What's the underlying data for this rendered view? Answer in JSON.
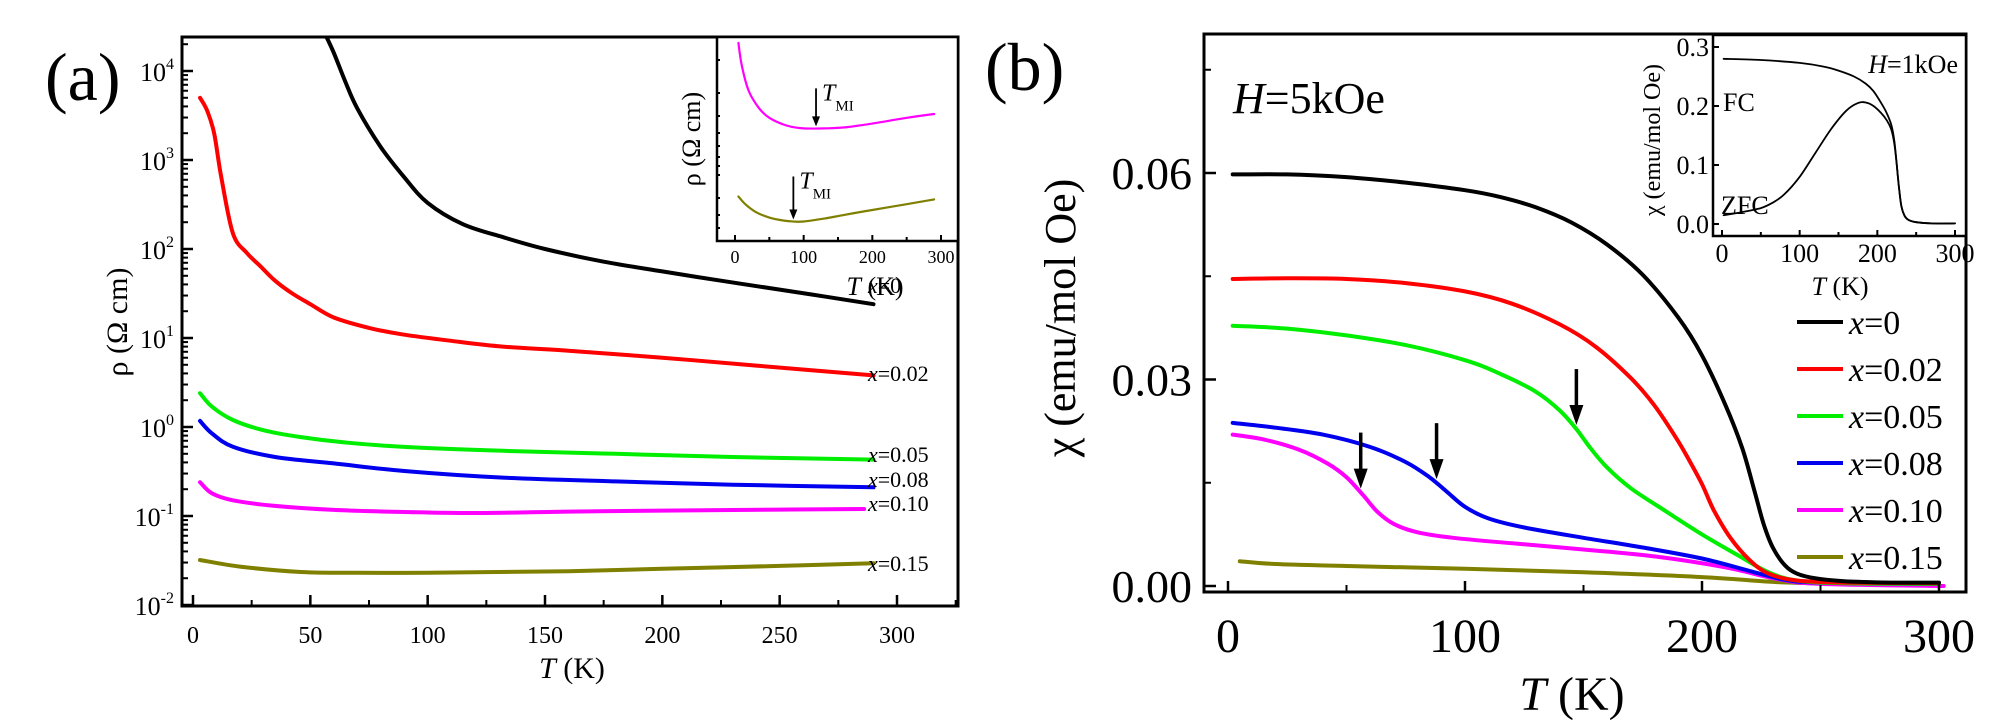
{
  "panel_labels": {
    "a": "(a)",
    "b": "(b)"
  },
  "chart_data": [
    {
      "id": "a-main",
      "type": "line",
      "title": "",
      "xlabel": "T (K)",
      "xlabel_italic_part": "T",
      "xlabel_rest": " (K)",
      "ylabel": "ρ (Ω cm)",
      "yscale": "log",
      "xlim": [
        -5,
        330
      ],
      "ylim": [
        0.0098,
        27000
      ],
      "xticks": [
        0,
        50,
        100,
        150,
        200,
        250,
        300
      ],
      "xtick_labels": [
        "0",
        "50",
        "100",
        "150",
        "200",
        "250",
        "300"
      ],
      "yticks_exp": [
        -2,
        -1,
        0,
        1,
        2,
        3,
        4
      ],
      "ytick_labels": [
        {
          "base": "10",
          "exp": "-2"
        },
        {
          "base": "10",
          "exp": "-1"
        },
        {
          "base": "10",
          "exp": "0"
        },
        {
          "base": "10",
          "exp": "1"
        },
        {
          "base": "10",
          "exp": "2"
        },
        {
          "base": "10",
          "exp": "3"
        },
        {
          "base": "10",
          "exp": "4"
        }
      ],
      "series": [
        {
          "name": "x=0",
          "label_var": "x",
          "label_val": "=0",
          "color": "#000000",
          "x": [
            56,
            60,
            65,
            70,
            80,
            90,
            100,
            115,
            132,
            150,
            175,
            200,
            225,
            250,
            270,
            290
          ],
          "y": [
            27000,
            16000,
            7500,
            3800,
            1400,
            640,
            330,
            190,
            136,
            100,
            72,
            56,
            44,
            35,
            29,
            24
          ]
        },
        {
          "name": "x=0.02",
          "label_var": "x",
          "label_val": "=0.02",
          "color": "#ff0000",
          "x": [
            3,
            6,
            9,
            12,
            17,
            23,
            29,
            35,
            42,
            50,
            60,
            75,
            89,
            110,
            132,
            160,
            200,
            240,
            290
          ],
          "y": [
            5000,
            3600,
            2000,
            650,
            150,
            90,
            63,
            44,
            32,
            24,
            17,
            13,
            11,
            9.3,
            8.0,
            7.2,
            6.0,
            4.9,
            3.8
          ]
        },
        {
          "name": "x=0.05",
          "label_var": "x",
          "label_val": "=0.05",
          "color": "#00ee00",
          "x": [
            3,
            8,
            17,
            30,
            46,
            65,
            89,
            132,
            180,
            230,
            290
          ],
          "y": [
            2.4,
            1.7,
            1.2,
            0.92,
            0.77,
            0.67,
            0.6,
            0.54,
            0.5,
            0.46,
            0.43
          ]
        },
        {
          "name": "x=0.08",
          "label_var": "x",
          "label_val": "=0.08",
          "color": "#0000ee",
          "x": [
            3,
            8,
            17,
            35,
            60,
            90,
            132,
            180,
            230,
            290
          ],
          "y": [
            1.17,
            0.85,
            0.6,
            0.46,
            0.39,
            0.32,
            0.27,
            0.245,
            0.225,
            0.21
          ]
        },
        {
          "name": "x=0.10",
          "label_var": "x",
          "label_val": "=0.10",
          "color": "#ff00ff",
          "x": [
            3,
            8,
            17,
            35,
            60,
            90,
            120,
            160,
            200,
            250,
            286
          ],
          "y": [
            0.24,
            0.18,
            0.15,
            0.13,
            0.117,
            0.111,
            0.108,
            0.112,
            0.115,
            0.118,
            0.12
          ]
        },
        {
          "name": "x=0.15",
          "label_var": "x",
          "label_val": "=0.15",
          "color": "#808000",
          "x": [
            3,
            20,
            46,
            70,
            100,
            130,
            160,
            200,
            250,
            290
          ],
          "y": [
            0.032,
            0.027,
            0.0235,
            0.023,
            0.023,
            0.0235,
            0.024,
            0.0255,
            0.0275,
            0.0295
          ]
        }
      ]
    },
    {
      "id": "a-inset",
      "type": "line",
      "xlabel": "T (K)",
      "xlabel_italic_part": "T",
      "xlabel_rest": " (K)",
      "ylabel": "ρ (Ω cm)",
      "yscale": "arbitrary",
      "xlim": [
        -15,
        315
      ],
      "ylim": [
        0,
        1
      ],
      "xticks": [
        0,
        100,
        200,
        300
      ],
      "xtick_labels": [
        "0",
        "100",
        "200",
        "300"
      ],
      "series": [
        {
          "name": "x=0.10",
          "color": "#ff00ff",
          "x": [
            5,
            10,
            20,
            35,
            50,
            75,
            100,
            130,
            160,
            200,
            250,
            290
          ],
          "y": [
            0.99,
            0.87,
            0.74,
            0.65,
            0.6,
            0.56,
            0.545,
            0.545,
            0.55,
            0.57,
            0.6,
            0.62
          ]
        },
        {
          "name": "x=0.15",
          "color": "#808000",
          "x": [
            5,
            15,
            30,
            50,
            70,
            85,
            100,
            130,
            160,
            200,
            250,
            290
          ],
          "y": [
            0.19,
            0.15,
            0.11,
            0.08,
            0.065,
            0.06,
            0.06,
            0.075,
            0.095,
            0.12,
            0.15,
            0.175
          ]
        }
      ],
      "annotations": [
        {
          "text_var": "T",
          "text_sub": "MI",
          "series": "x=0.10",
          "x": 118
        },
        {
          "text_var": "T",
          "text_sub": "MI",
          "series": "x=0.15",
          "x": 85
        }
      ]
    },
    {
      "id": "b-main",
      "type": "line",
      "xlabel": "T (K)",
      "xlabel_italic_part": "T",
      "xlabel_rest": " (K)",
      "ylabel": "χ (emu/mol Oe)",
      "xlim": [
        -10,
        312
      ],
      "ylim": [
        -0.0009,
        0.0802
      ],
      "xticks": [
        0,
        50,
        100,
        150,
        200,
        250,
        300
      ],
      "xtick_labels": [
        "0",
        "",
        "100",
        "",
        "200",
        "",
        "300"
      ],
      "yticks": [
        0,
        0.015,
        0.03,
        0.045,
        0.06,
        0.075
      ],
      "ytick_labels": [
        "0.00",
        "",
        "0.03",
        "",
        "0.06",
        ""
      ],
      "annotation_field": {
        "var": "H",
        "text": "=5kOe"
      },
      "series": [
        {
          "name": "x=0",
          "label_var": "x",
          "label_val": "=0",
          "color": "#000000",
          "x": [
            2,
            25,
            50,
            75,
            100,
            115,
            130,
            145,
            160,
            175,
            190,
            200,
            210,
            217,
            222,
            226,
            230,
            235,
            240,
            248,
            260,
            280,
            300
          ],
          "y": [
            0.0598,
            0.0598,
            0.0594,
            0.0586,
            0.0575,
            0.0565,
            0.055,
            0.0528,
            0.0496,
            0.0452,
            0.039,
            0.0335,
            0.0262,
            0.02,
            0.014,
            0.009,
            0.0055,
            0.003,
            0.0018,
            0.0011,
            0.0007,
            0.0005,
            0.0005
          ]
        },
        {
          "name": "x=0.02",
          "label_var": "x",
          "label_val": "=0.02",
          "color": "#ff0000",
          "x": [
            2,
            25,
            50,
            75,
            100,
            120,
            140,
            155,
            170,
            180,
            190,
            195,
            200,
            205,
            212,
            220,
            228,
            240,
            260,
            300
          ],
          "y": [
            0.0446,
            0.0447,
            0.0446,
            0.044,
            0.0428,
            0.041,
            0.038,
            0.0348,
            0.0302,
            0.0262,
            0.021,
            0.018,
            0.0148,
            0.011,
            0.007,
            0.0038,
            0.0018,
            0.0008,
            0.0005,
            0.0004
          ]
        },
        {
          "name": "x=0.05",
          "label_var": "x",
          "label_val": "=0.05",
          "color": "#00ee00",
          "x": [
            2,
            25,
            50,
            75,
            100,
            115,
            130,
            140,
            147,
            153,
            160,
            170,
            185,
            200,
            215,
            228,
            240,
            260,
            300
          ],
          "y": [
            0.0378,
            0.0374,
            0.0364,
            0.035,
            0.0328,
            0.0308,
            0.0282,
            0.0255,
            0.0228,
            0.02,
            0.0172,
            0.0142,
            0.0108,
            0.0075,
            0.0045,
            0.002,
            0.0008,
            0.0004,
            0.0003
          ]
        },
        {
          "name": "x=0.08",
          "label_var": "x",
          "label_val": "=0.08",
          "color": "#0000ee",
          "x": [
            2,
            20,
            40,
            60,
            75,
            85,
            92,
            100,
            110,
            125,
            150,
            175,
            200,
            220,
            235,
            250,
            300
          ],
          "y": [
            0.0237,
            0.023,
            0.022,
            0.0202,
            0.018,
            0.0158,
            0.0138,
            0.0115,
            0.0098,
            0.0085,
            0.007,
            0.0056,
            0.004,
            0.0022,
            0.0009,
            0.0005,
            0.0003
          ]
        },
        {
          "name": "x=0.10",
          "label_var": "x",
          "label_val": "=0.10",
          "color": "#ff00ff",
          "x": [
            2,
            15,
            30,
            42,
            50,
            57,
            63,
            70,
            80,
            95,
            120,
            150,
            180,
            210,
            232,
            250,
            302
          ],
          "y": [
            0.022,
            0.0213,
            0.0198,
            0.0178,
            0.0158,
            0.0132,
            0.0108,
            0.009,
            0.0078,
            0.007,
            0.0062,
            0.0053,
            0.0043,
            0.0027,
            0.001,
            0.0003,
            0.0
          ]
        },
        {
          "name": "x=0.15",
          "label_var": "x",
          "label_val": "=0.15",
          "color": "#808000",
          "x": [
            5,
            20,
            50,
            100,
            150,
            200,
            230,
            250,
            300
          ],
          "y": [
            0.0036,
            0.0032,
            0.0029,
            0.0025,
            0.002,
            0.0013,
            0.0006,
            0.0004,
            0.0004
          ]
        }
      ],
      "arrows": [
        {
          "series": "x=0.10",
          "x": 56
        },
        {
          "series": "x=0.08",
          "x": 88
        },
        {
          "series": "x=0.05",
          "x": 147
        }
      ],
      "legend": {
        "placement": "right"
      }
    },
    {
      "id": "b-inset",
      "type": "line",
      "xlabel": "T (K)",
      "xlabel_italic_part": "T",
      "xlabel_rest": " (K)",
      "ylabel": "χ (emu/mol Oe)",
      "xlim": [
        -12,
        318
      ],
      "ylim": [
        -0.02,
        0.31
      ],
      "xticks": [
        0,
        50,
        100,
        150,
        200,
        250,
        300
      ],
      "xtick_labels": [
        "0",
        "",
        "100",
        "",
        "200",
        "",
        "300"
      ],
      "yticks": [
        0.0,
        0.1,
        0.2,
        0.3
      ],
      "ytick_labels": [
        "0.0",
        "0.1",
        "0.2",
        "0.3"
      ],
      "annotation_field": {
        "var": "H",
        "text": "=1kOe"
      },
      "series": [
        {
          "name": "FC",
          "color": "#000000",
          "x": [
            2,
            50,
            100,
            130,
            150,
            170,
            185,
            195,
            205,
            212,
            218,
            222,
            225,
            228,
            231,
            235,
            240,
            250,
            270,
            300
          ],
          "y": [
            0.28,
            0.278,
            0.273,
            0.267,
            0.26,
            0.25,
            0.238,
            0.225,
            0.205,
            0.188,
            0.168,
            0.14,
            0.1,
            0.06,
            0.03,
            0.014,
            0.007,
            0.003,
            0.001,
            0.001
          ]
        },
        {
          "name": "ZFC",
          "color": "#000000",
          "x": [
            2,
            25,
            50,
            65,
            80,
            100,
            120,
            140,
            160,
            175,
            185,
            195,
            205,
            212,
            218,
            222,
            225,
            228,
            231,
            235,
            240,
            250,
            270,
            300
          ],
          "y": [
            0.015,
            0.02,
            0.027,
            0.036,
            0.05,
            0.08,
            0.12,
            0.16,
            0.192,
            0.205,
            0.206,
            0.2,
            0.188,
            0.176,
            0.16,
            0.135,
            0.1,
            0.06,
            0.03,
            0.014,
            0.007,
            0.003,
            0.001,
            0.001
          ]
        }
      ],
      "labels": {
        "fc": "FC",
        "zfc": "ZFC"
      }
    }
  ]
}
